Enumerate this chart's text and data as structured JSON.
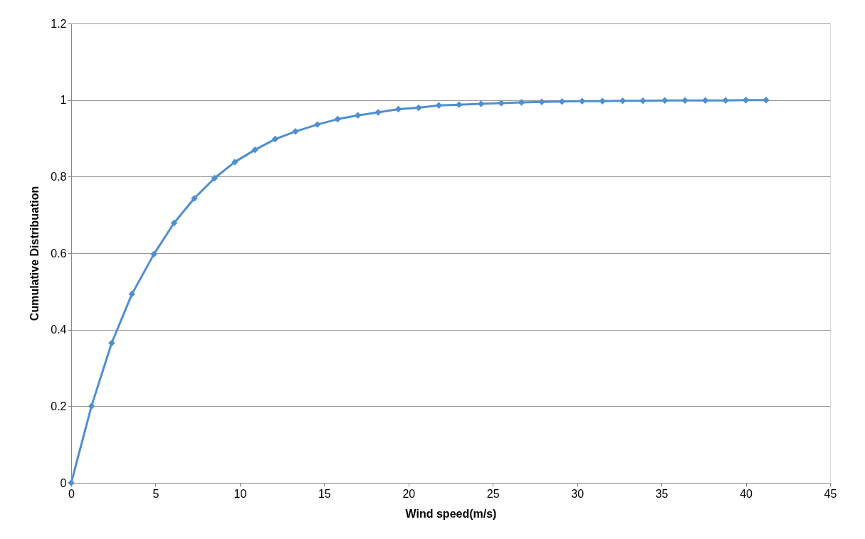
{
  "chart_data": {
    "type": "line",
    "xlabel": "Wind speed(m/s)",
    "ylabel": "Cumulative Distribuation",
    "x": [
      0,
      1.2,
      2.4,
      3.6,
      4.9,
      6.1,
      7.3,
      8.5,
      9.7,
      10.9,
      12.1,
      13.3,
      14.6,
      15.8,
      17.0,
      18.2,
      19.4,
      20.6,
      21.8,
      23.0,
      24.3,
      25.5,
      26.7,
      27.9,
      29.1,
      30.3,
      31.5,
      32.7,
      33.9,
      35.2,
      36.4,
      37.6,
      38.8,
      40.0,
      41.2
    ],
    "series": [
      {
        "color": "#4f8fd0",
        "values": [
          0,
          0.2,
          0.365,
          0.493,
          0.597,
          0.679,
          0.743,
          0.796,
          0.838,
          0.87,
          0.898,
          0.918,
          0.936,
          0.95,
          0.96,
          0.968,
          0.976,
          0.98,
          0.986,
          0.988,
          0.99,
          0.992,
          0.994,
          0.995,
          0.996,
          0.997,
          0.997,
          0.998,
          0.998,
          0.999,
          0.999,
          0.999,
          0.999,
          1,
          1
        ]
      }
    ],
    "xlim": [
      0,
      45
    ],
    "xticks": [
      0,
      5,
      10,
      15,
      20,
      25,
      30,
      35,
      40,
      45
    ],
    "ylim": [
      0,
      1.2
    ],
    "yticks": [
      0,
      0.2,
      0.4,
      0.6,
      0.8,
      1,
      1.2
    ],
    "grid": "y",
    "marker": "diamond",
    "line_style": "solid"
  }
}
